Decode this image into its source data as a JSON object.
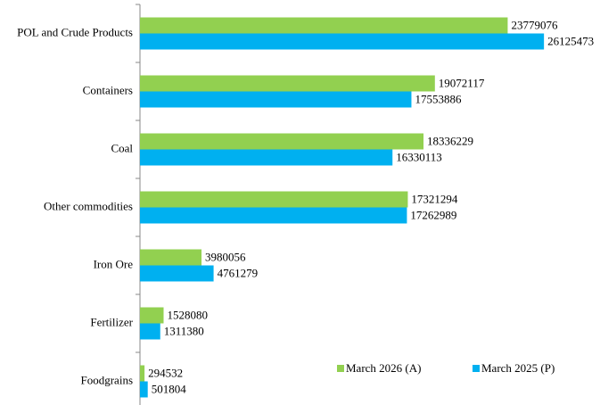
{
  "chart_data": {
    "type": "hbar",
    "categories": [
      "POL and Crude Products",
      "Containers",
      "Coal",
      "Other commodities",
      "Iron Ore",
      "Fertilizer",
      "Foodgrains"
    ],
    "series": [
      {
        "name": "March 2026 (A)",
        "color": "#92d050",
        "values": [
          23779076,
          19072117,
          18336229,
          17321294,
          3980056,
          1528080,
          294532
        ]
      },
      {
        "name": "March 2025 (P)",
        "color": "#00b0f0",
        "values": [
          26125473,
          17553886,
          16330113,
          17262989,
          4761279,
          1311380,
          501804
        ]
      }
    ],
    "xlim": [
      0,
      29000000
    ],
    "legend": "lower right"
  }
}
